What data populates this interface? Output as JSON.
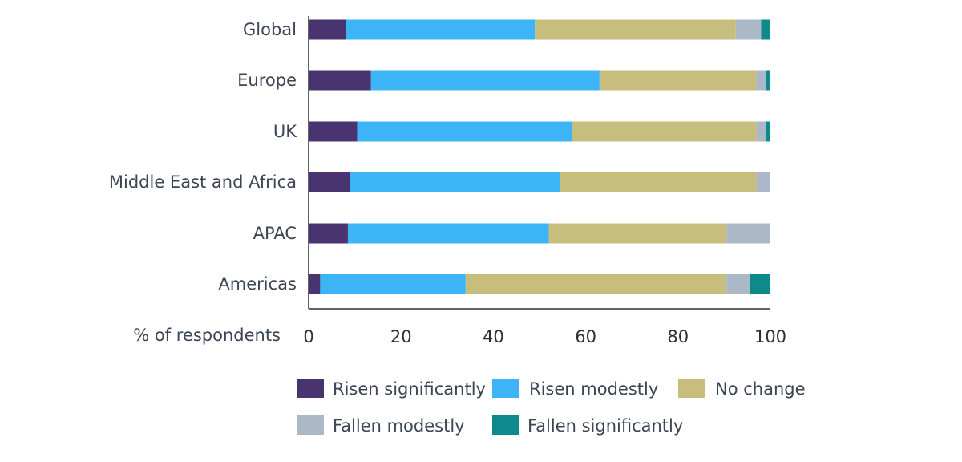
{
  "chart_data": {
    "type": "bar",
    "orientation": "horizontal",
    "stacked": true,
    "title": "",
    "xlabel": "% of respondents",
    "ylabel": "",
    "xlim": [
      0,
      100
    ],
    "xticks": [
      0,
      20,
      40,
      60,
      80,
      100
    ],
    "categories": [
      "Global",
      "Europe",
      "UK",
      "Middle East and Africa",
      "APAC",
      "Americas"
    ],
    "series": [
      {
        "name": "Risen significantly",
        "color": "#4a3470",
        "values": [
          8,
          13.5,
          10.5,
          9,
          8.5,
          2.5
        ]
      },
      {
        "name": "Risen modestly",
        "color": "#3db4f5",
        "values": [
          41,
          49.5,
          46.5,
          45.5,
          43.5,
          31.5
        ]
      },
      {
        "name": "No change",
        "color": "#c7bd7c",
        "values": [
          43.5,
          34,
          40,
          42.5,
          38.5,
          56.5
        ]
      },
      {
        "name": "Fallen modestly",
        "color": "#abb8c7",
        "values": [
          5.5,
          2,
          2,
          3,
          9.5,
          5
        ]
      },
      {
        "name": "Fallen significantly",
        "color": "#0e8a8c",
        "values": [
          2,
          1,
          1,
          0,
          0,
          4.5
        ]
      }
    ],
    "grid": false,
    "legend": "bottom"
  }
}
